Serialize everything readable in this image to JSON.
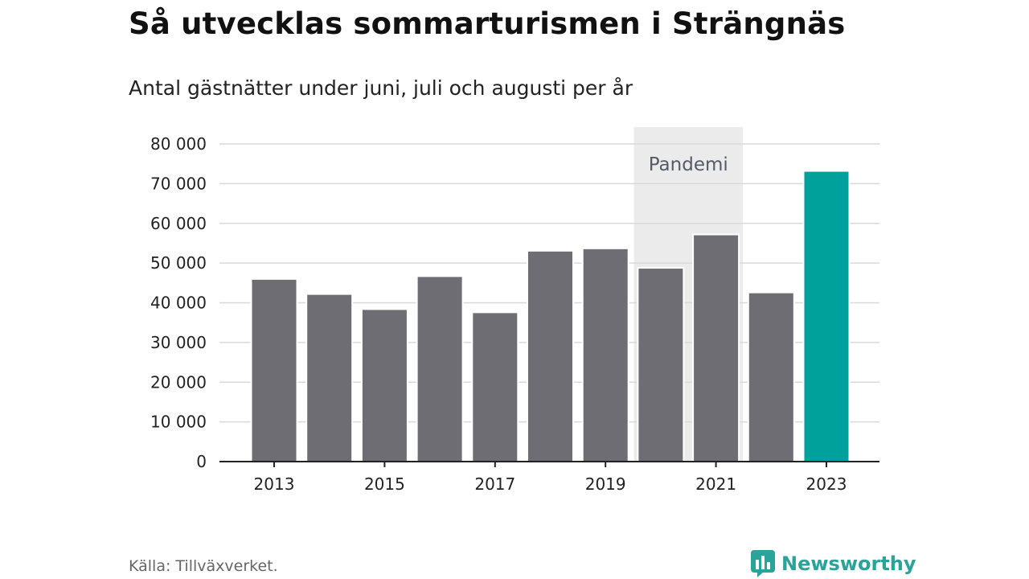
{
  "header": {
    "title": "Så utvecklas sommarturismen i Strängnäs",
    "subtitle": "Antal gästnätter under juni, juli och augusti per år"
  },
  "footer": {
    "source": "Källa: Tillväxverket.",
    "brand": "Newsworthy"
  },
  "colors": {
    "bar": "#6e6d73",
    "highlight": "#00a19a",
    "band": "#ebebeb",
    "grid": "#d9d9d9",
    "axis": "#222222",
    "brand": "#2aa39a"
  },
  "chart_data": {
    "type": "bar",
    "title": "Så utvecklas sommarturismen i Strängnäs",
    "subtitle": "Antal gästnätter under juni, juli och augusti per år",
    "xlabel": "",
    "ylabel": "",
    "categories": [
      "2013",
      "2014",
      "2015",
      "2016",
      "2017",
      "2018",
      "2019",
      "2020",
      "2021",
      "2022",
      "2023"
    ],
    "values": [
      46000,
      42200,
      38400,
      46700,
      37600,
      53100,
      53700,
      48800,
      57200,
      42600,
      73200
    ],
    "highlight_category": "2023",
    "x_tick_labels": [
      "2013",
      "2015",
      "2017",
      "2019",
      "2021",
      "2023"
    ],
    "y_ticks": [
      0,
      10000,
      20000,
      30000,
      40000,
      50000,
      60000,
      70000,
      80000
    ],
    "y_tick_labels": [
      "0",
      "10 000",
      "20 000",
      "30 000",
      "40 000",
      "50 000",
      "60 000",
      "70 000",
      "80 000"
    ],
    "ylim": [
      0,
      80000
    ],
    "grid": true,
    "legend": "none",
    "annotations": [
      {
        "type": "band",
        "label": "Pandemi",
        "from": "2020",
        "to": "2021"
      }
    ]
  }
}
